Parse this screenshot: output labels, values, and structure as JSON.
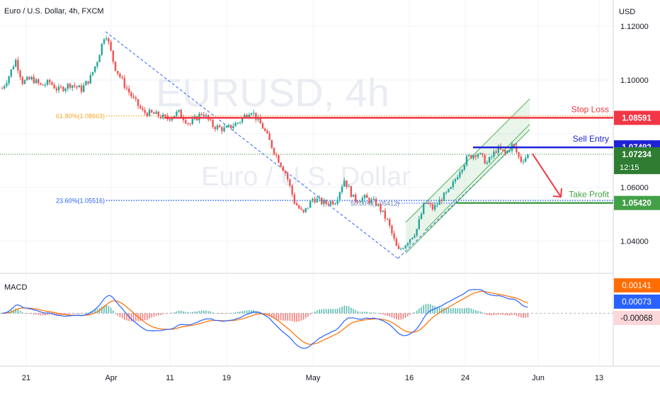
{
  "header": {
    "symbol_title": "Euro / U.S. Dollar, 4h, FXCM",
    "currency": "USD"
  },
  "watermark": {
    "ticker": "EURUSD, 4h",
    "name": "Euro / U.S. Dollar"
  },
  "colors": {
    "up": "#26a69a",
    "down": "#ef5350",
    "stop_loss": "#f23645",
    "sell_entry": "#1e22d7",
    "take_profit": "#43a047",
    "current_price": "#2e7d32",
    "macd_line": "#2962ff",
    "signal_line": "#ff6d00",
    "fib_61": "#f5a623",
    "fib_23": "#2962ff",
    "channel": "#4caf50",
    "grid": "#f0f3fa"
  },
  "chart_data": [
    {
      "type": "candlestick",
      "symbol": "EURUSD",
      "timeframe": "4h",
      "x_ticks": [
        "21",
        "Apr",
        "11",
        "19",
        "May",
        "16",
        "24",
        "Jun",
        "13"
      ],
      "y_ticks": [
        "1.12000",
        "1.10000",
        "1.06000",
        "1.04000"
      ],
      "ylim": [
        1.028,
        1.124
      ],
      "price_path": [
        {
          "x": 0,
          "y": 1.0955
        },
        {
          "x": 12,
          "y": 1.1012
        },
        {
          "x": 22,
          "y": 1.1075
        },
        {
          "x": 32,
          "y": 1.0992
        },
        {
          "x": 45,
          "y": 1.1005
        },
        {
          "x": 58,
          "y": 1.0978
        },
        {
          "x": 70,
          "y": 1.0992
        },
        {
          "x": 82,
          "y": 1.0962
        },
        {
          "x": 100,
          "y": 1.0985
        },
        {
          "x": 115,
          "y": 1.0965
        },
        {
          "x": 128,
          "y": 1.101
        },
        {
          "x": 137,
          "y": 1.107
        },
        {
          "x": 149,
          "y": 1.118
        },
        {
          "x": 162,
          "y": 1.105
        },
        {
          "x": 175,
          "y": 1.0985
        },
        {
          "x": 188,
          "y": 1.093
        },
        {
          "x": 202,
          "y": 1.088
        },
        {
          "x": 218,
          "y": 1.0873
        },
        {
          "x": 236,
          "y": 1.0855
        },
        {
          "x": 252,
          "y": 1.088
        },
        {
          "x": 268,
          "y": 1.0835
        },
        {
          "x": 286,
          "y": 1.088
        },
        {
          "x": 300,
          "y": 1.083
        },
        {
          "x": 318,
          "y": 1.0815
        },
        {
          "x": 338,
          "y": 1.0845
        },
        {
          "x": 354,
          "y": 1.089
        },
        {
          "x": 372,
          "y": 1.082
        },
        {
          "x": 388,
          "y": 1.073
        },
        {
          "x": 404,
          "y": 1.065
        },
        {
          "x": 416,
          "y": 1.0545
        },
        {
          "x": 428,
          "y": 1.05
        },
        {
          "x": 442,
          "y": 1.056
        },
        {
          "x": 458,
          "y": 1.054
        },
        {
          "x": 474,
          "y": 1.055
        },
        {
          "x": 486,
          "y": 1.063
        },
        {
          "x": 500,
          "y": 1.0555
        },
        {
          "x": 515,
          "y": 1.056
        },
        {
          "x": 532,
          "y": 1.054
        },
        {
          "x": 548,
          "y": 1.047
        },
        {
          "x": 562,
          "y": 1.036
        },
        {
          "x": 574,
          "y": 1.0395
        },
        {
          "x": 588,
          "y": 1.044
        },
        {
          "x": 600,
          "y": 1.0545
        },
        {
          "x": 612,
          "y": 1.052
        },
        {
          "x": 624,
          "y": 1.056
        },
        {
          "x": 636,
          "y": 1.059
        },
        {
          "x": 648,
          "y": 1.066
        },
        {
          "x": 660,
          "y": 1.071
        },
        {
          "x": 674,
          "y": 1.073
        },
        {
          "x": 688,
          "y": 1.069
        },
        {
          "x": 702,
          "y": 1.0745
        },
        {
          "x": 714,
          "y": 1.0725
        },
        {
          "x": 724,
          "y": 1.076
        },
        {
          "x": 735,
          "y": 1.07
        },
        {
          "x": 748,
          "y": 1.0723
        }
      ],
      "fibonacci": [
        {
          "label": "61.80%(1.08663)",
          "value": 1.08663
        },
        {
          "label": "23.60%(1.05516)",
          "value": 1.05516
        },
        {
          "label": "50.00%(1.05412)",
          "value": 1.05412
        }
      ],
      "levels": [
        {
          "name": "Stop Loss",
          "value": 1.08591,
          "tag": "1.08591"
        },
        {
          "name": "Sell Entry",
          "value": 1.07492,
          "tag": "1.07492"
        },
        {
          "name": "Take Profit",
          "value": 1.0542,
          "tag": "1.05420"
        }
      ],
      "current_price": {
        "value": 1.07234,
        "tag": "1.07234",
        "countdown": "12:15"
      }
    },
    {
      "type": "line",
      "indicator": "MACD",
      "title": "MACD",
      "values_shown": [
        "0.00141",
        "0.00073",
        "-0.00068"
      ],
      "ylim": [
        -0.012,
        0.009
      ]
    }
  ]
}
